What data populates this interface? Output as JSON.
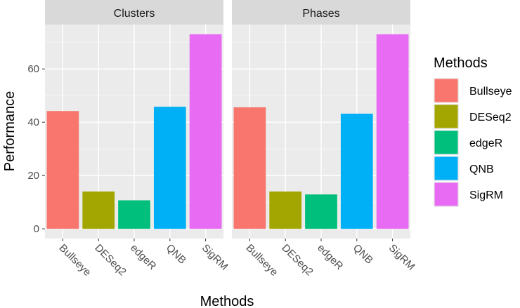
{
  "chart_data": {
    "type": "bar",
    "facets": [
      "Clusters",
      "Phases"
    ],
    "categories": [
      "Bullseye",
      "DESeq2",
      "edgeR",
      "QNB",
      "SigRM"
    ],
    "series": [
      {
        "name": "Clusters",
        "values": [
          44.2,
          14.0,
          10.7,
          45.8,
          73.0
        ]
      },
      {
        "name": "Phases",
        "values": [
          45.6,
          14.0,
          12.9,
          43.2,
          73.0
        ]
      }
    ],
    "colors": {
      "Bullseye": "#F8766D",
      "DESeq2": "#A3A500",
      "edgeR": "#00BF7D",
      "QNB": "#00B0F6",
      "SigRM": "#E76BF3"
    },
    "xlabel": "Methods",
    "ylabel": "Performance",
    "ylim": [
      -3.65,
      76.65
    ],
    "yticks": [
      0,
      20,
      40,
      60
    ],
    "legend": {
      "title": "Methods",
      "items": [
        "Bullseye",
        "DESeq2",
        "edgeR",
        "QNB",
        "SigRM"
      ],
      "position": "right"
    },
    "grid": true
  }
}
